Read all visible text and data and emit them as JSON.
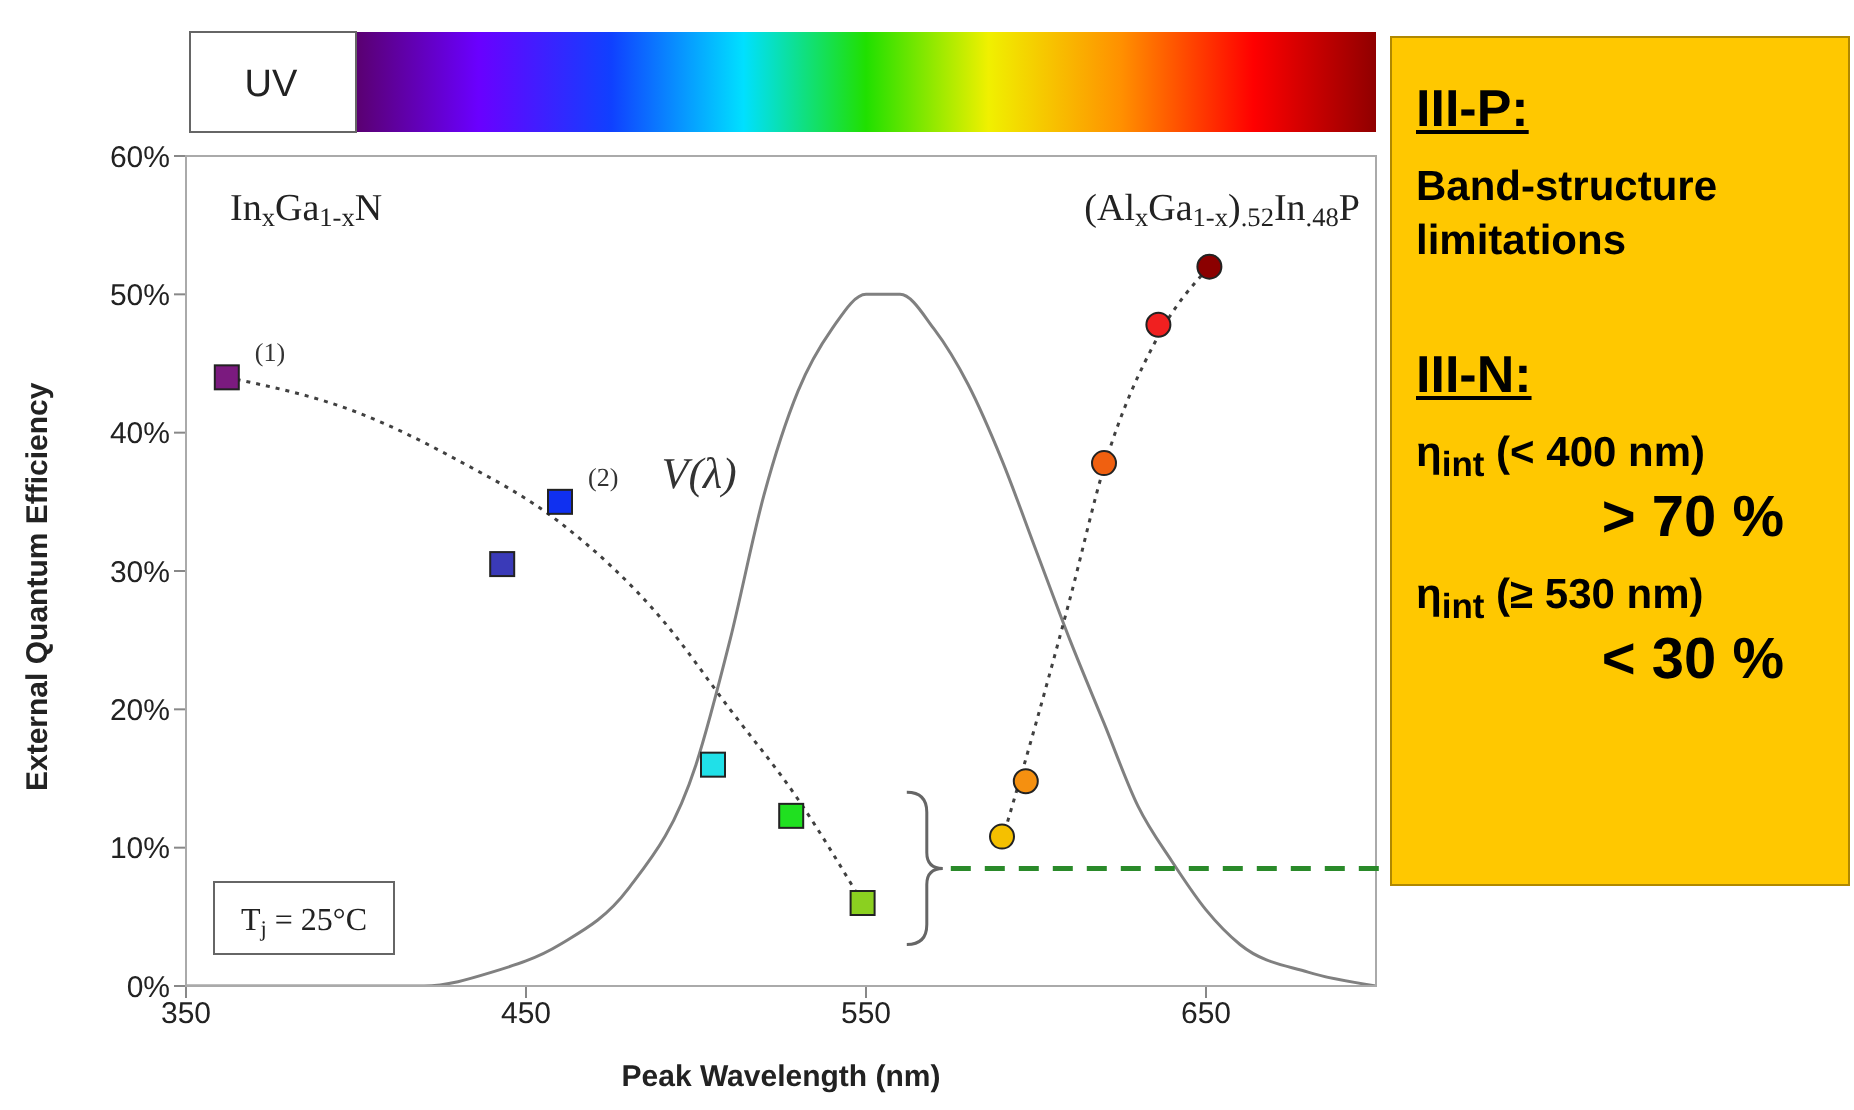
{
  "chart_data": {
    "type": "scatter",
    "xlabel": "Peak Wavelength (nm)",
    "ylabel": "External Quantum Efficiency",
    "xlim": [
      350,
      700
    ],
    "xticks": [
      350,
      450,
      550,
      650
    ],
    "ylim": [
      0,
      60
    ],
    "yticks": [
      {
        "value": 0,
        "label": "0%"
      },
      {
        "value": 10,
        "label": "10%"
      },
      {
        "value": 20,
        "label": "20%"
      },
      {
        "value": 30,
        "label": "30%"
      },
      {
        "value": 40,
        "label": "40%"
      },
      {
        "value": 50,
        "label": "50%"
      },
      {
        "value": 60,
        "label": "60%"
      }
    ],
    "series": [
      {
        "type": "line",
        "color": "#808080",
        "line_style": "solid",
        "x": [
          350,
          380,
          400,
          420,
          440,
          460,
          480,
          500,
          510,
          520,
          530,
          540,
          550,
          555,
          560,
          570,
          580,
          590,
          600,
          610,
          620,
          630,
          640,
          650,
          660,
          680,
          700
        ],
        "values": [
          0,
          0,
          0,
          0,
          1,
          3,
          7,
          16,
          25,
          35.5,
          43,
          47.5,
          50,
          50,
          50,
          47.5,
          43.5,
          38,
          31.5,
          25,
          19,
          13,
          9,
          5.5,
          3,
          1,
          0
        ]
      },
      {
        "type": "line",
        "color": "#404040",
        "line_style": "dotted",
        "x": [
          362,
          400,
          430,
          460,
          490,
          510,
          530,
          549
        ],
        "values": [
          44,
          41.5,
          38,
          33.5,
          26.5,
          20,
          13.5,
          6
        ]
      },
      {
        "type": "line",
        "color": "#404040",
        "line_style": "dotted",
        "x": [
          590,
          600,
          610,
          620,
          636,
          651
        ],
        "values": [
          10.5,
          19,
          28,
          37.5,
          47,
          52
        ]
      },
      {
        "marker": "square",
        "x": [
          362,
          443,
          460,
          505,
          528,
          549
        ],
        "values": [
          44,
          30.5,
          35,
          16,
          12.3,
          6
        ],
        "colors": [
          "#7b1a7f",
          "#3a3ab8",
          "#1030f0",
          "#20e0e8",
          "#20e020",
          "#8bd020"
        ]
      },
      {
        "marker": "circle",
        "x": [
          590,
          597,
          620,
          636,
          651
        ],
        "values": [
          10.8,
          14.8,
          37.8,
          47.8,
          52
        ],
        "colors": [
          "#f5c000",
          "#f59010",
          "#f06010",
          "#f02020",
          "#8b0000"
        ]
      }
    ],
    "annotations": [
      "UV",
      "In$_{x}$Ga$_{1-x}$N",
      "(Al$_{x}$Ga$_{1-x}$)$_{.52}$In$_{.48}$P",
      {
        "text": "(1)",
        "x": 362,
        "y": 44
      },
      {
        "text": "(2)",
        "x": 460,
        "y": 35
      },
      "V(λ)",
      "T$_{j}$ = 25°C",
      "III-P:",
      "Band-structure limitations",
      "III-N:",
      "η$_{int}$ (< 400 nm)",
      "> 70 %",
      "η$_{int}$ (≥ 530 nm)",
      "< 30 %"
    ]
  }
}
